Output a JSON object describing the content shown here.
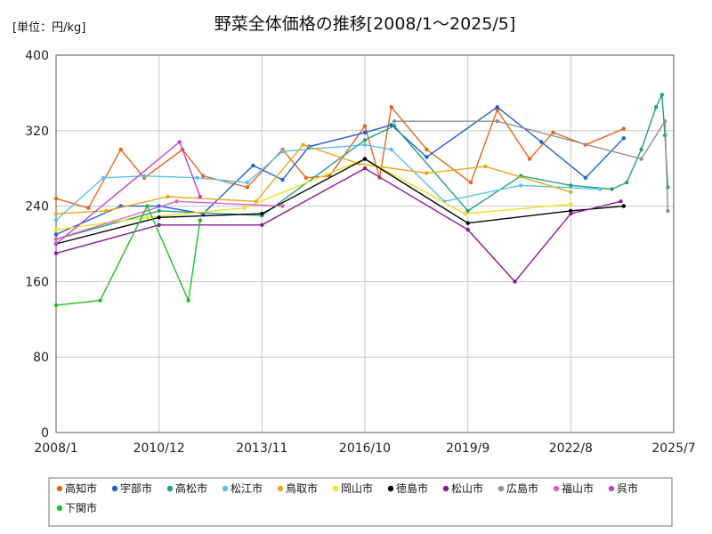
{
  "chart_data": {
    "type": "line",
    "title": "野菜全体価格の推移[2008/1～2025/5]",
    "unit_label": "[単位：円/kg]",
    "xlim": [
      "2008/1",
      "2025/7"
    ],
    "ylim": [
      0,
      400
    ],
    "y_ticks": [
      0,
      80,
      160,
      240,
      320,
      400
    ],
    "x_ticks": [
      "2008/1",
      "2010/12",
      "2013/11",
      "2016/10",
      "2019/9",
      "2022/8",
      "2025/7"
    ],
    "grid": true,
    "legend_position": "bottom",
    "series": [
      {
        "name": "高知市",
        "color": "#E8651A",
        "values": [
          {
            "x": "2008/1",
            "y": 248
          },
          {
            "x": "2008/12",
            "y": 238
          },
          {
            "x": "2009/11",
            "y": 300
          },
          {
            "x": "2010/7",
            "y": 270
          },
          {
            "x": "2011/8",
            "y": 300
          },
          {
            "x": "2012/3",
            "y": 272
          },
          {
            "x": "2013/6",
            "y": 260
          },
          {
            "x": "2014/6",
            "y": 300
          },
          {
            "x": "2015/2",
            "y": 270
          },
          {
            "x": "2015/10",
            "y": 272
          },
          {
            "x": "2016/10",
            "y": 325
          },
          {
            "x": "2017/3",
            "y": 270
          },
          {
            "x": "2017/7",
            "y": 345
          },
          {
            "x": "2018/7",
            "y": 300
          },
          {
            "x": "2019/10",
            "y": 265
          },
          {
            "x": "2020/7",
            "y": 342
          },
          {
            "x": "2021/6",
            "y": 290
          },
          {
            "x": "2022/2",
            "y": 318
          },
          {
            "x": "2023/1",
            "y": 305
          },
          {
            "x": "2024/2",
            "y": 322
          }
        ]
      },
      {
        "name": "宇部市",
        "color": "#1F5FD6",
        "values": [
          {
            "x": "2008/1",
            "y": 210
          },
          {
            "x": "2009/11",
            "y": 240
          },
          {
            "x": "2010/12",
            "y": 240
          },
          {
            "x": "2012/3",
            "y": 232
          },
          {
            "x": "2013/8",
            "y": 283
          },
          {
            "x": "2014/6",
            "y": 268
          },
          {
            "x": "2015/3",
            "y": 303
          },
          {
            "x": "2016/10",
            "y": 318
          },
          {
            "x": "2017/7",
            "y": 326
          },
          {
            "x": "2018/7",
            "y": 292
          },
          {
            "x": "2020/7",
            "y": 345
          },
          {
            "x": "2021/10",
            "y": 308
          },
          {
            "x": "2023/1",
            "y": 270
          },
          {
            "x": "2024/2",
            "y": 312
          }
        ]
      },
      {
        "name": "高松市",
        "color": "#20A080",
        "values": [
          {
            "x": "2008/1",
            "y": 205
          },
          {
            "x": "2010/12",
            "y": 235
          },
          {
            "x": "2013/11",
            "y": 230
          },
          {
            "x": "2016/10",
            "y": 310
          },
          {
            "x": "2017/8",
            "y": 325
          },
          {
            "x": "2019/9",
            "y": 235
          },
          {
            "x": "2021/3",
            "y": 272
          },
          {
            "x": "2022/8",
            "y": 262
          },
          {
            "x": "2023/10",
            "y": 258
          },
          {
            "x": "2024/3",
            "y": 265
          },
          {
            "x": "2024/8",
            "y": 300
          },
          {
            "x": "2025/1",
            "y": 345
          },
          {
            "x": "2025/3",
            "y": 358
          },
          {
            "x": "2025/4",
            "y": 315
          },
          {
            "x": "2025/5",
            "y": 260
          }
        ]
      },
      {
        "name": "松江市",
        "color": "#5BC0E8",
        "values": [
          {
            "x": "2008/1",
            "y": 225
          },
          {
            "x": "2009/5",
            "y": 270
          },
          {
            "x": "2010/7",
            "y": 272
          },
          {
            "x": "2012/1",
            "y": 270
          },
          {
            "x": "2013/6",
            "y": 265
          },
          {
            "x": "2014/6",
            "y": 298
          },
          {
            "x": "2016/10",
            "y": 305
          },
          {
            "x": "2017/7",
            "y": 300
          },
          {
            "x": "2019/1",
            "y": 245
          },
          {
            "x": "2021/3",
            "y": 262
          },
          {
            "x": "2023/6",
            "y": 258
          }
        ]
      },
      {
        "name": "鳥取市",
        "color": "#E8A81A",
        "values": [
          {
            "x": "2008/1",
            "y": 232
          },
          {
            "x": "2009/6",
            "y": 235
          },
          {
            "x": "2011/3",
            "y": 250
          },
          {
            "x": "2013/9",
            "y": 245
          },
          {
            "x": "2015/1",
            "y": 305
          },
          {
            "x": "2016/8",
            "y": 285
          },
          {
            "x": "2018/7",
            "y": 275
          },
          {
            "x": "2020/3",
            "y": 282
          },
          {
            "x": "2022/8",
            "y": 255
          }
        ]
      },
      {
        "name": "岡山市",
        "color": "#F0E020",
        "values": [
          {
            "x": "2008/1",
            "y": 215
          },
          {
            "x": "2010/8",
            "y": 228
          },
          {
            "x": "2013/5",
            "y": 238
          },
          {
            "x": "2016/10",
            "y": 290
          },
          {
            "x": "2019/8",
            "y": 232
          },
          {
            "x": "2022/8",
            "y": 242
          }
        ]
      },
      {
        "name": "徳島市",
        "color": "#000000",
        "values": [
          {
            "x": "2008/1",
            "y": 200
          },
          {
            "x": "2010/12",
            "y": 228
          },
          {
            "x": "2013/11",
            "y": 232
          },
          {
            "x": "2016/10",
            "y": 290
          },
          {
            "x": "2019/9",
            "y": 222
          },
          {
            "x": "2022/8",
            "y": 235
          },
          {
            "x": "2024/2",
            "y": 240
          }
        ]
      },
      {
        "name": "松山市",
        "color": "#8A1A9A",
        "values": [
          {
            "x": "2008/1",
            "y": 190
          },
          {
            "x": "2010/12",
            "y": 220
          },
          {
            "x": "2013/11",
            "y": 220
          },
          {
            "x": "2016/10",
            "y": 280
          },
          {
            "x": "2019/9",
            "y": 215
          },
          {
            "x": "2021/1",
            "y": 160
          },
          {
            "x": "2022/8",
            "y": 232
          },
          {
            "x": "2024/1",
            "y": 245
          }
        ]
      },
      {
        "name": "広島市",
        "color": "#909090",
        "values": [
          {
            "x": "2017/8",
            "y": 330
          },
          {
            "x": "2020/7",
            "y": 330
          },
          {
            "x": "2024/8",
            "y": 290
          },
          {
            "x": "2025/4",
            "y": 330
          },
          {
            "x": "2025/5",
            "y": 235
          }
        ]
      },
      {
        "name": "福山市",
        "color": "#E060C0",
        "values": [
          {
            "x": "2008/1",
            "y": 205
          },
          {
            "x": "2011/6",
            "y": 245
          },
          {
            "x": "2014/6",
            "y": 240
          }
        ]
      },
      {
        "name": "呉市",
        "color": "#C040D0",
        "values": [
          {
            "x": "2008/1",
            "y": 200
          },
          {
            "x": "2011/7",
            "y": 308
          },
          {
            "x": "2012/2",
            "y": 250
          }
        ]
      },
      {
        "name": "下関市",
        "color": "#20C020",
        "values": [
          {
            "x": "2008/1",
            "y": 135
          },
          {
            "x": "2009/4",
            "y": 140
          },
          {
            "x": "2010/8",
            "y": 240
          },
          {
            "x": "2011/10",
            "y": 140
          },
          {
            "x": "2012/2",
            "y": 225
          }
        ]
      }
    ]
  }
}
